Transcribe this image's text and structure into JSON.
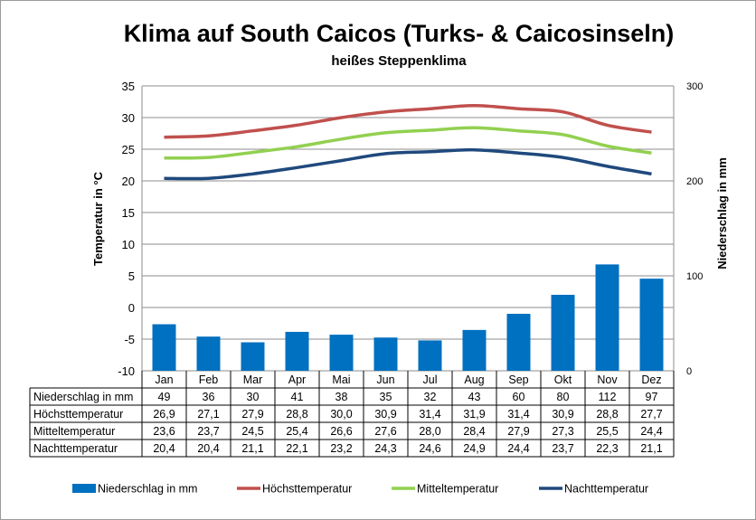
{
  "chart_data": {
    "type": "bar",
    "title": "Klima auf South Caicos (Turks- & Caicosinseln)",
    "subtitle": "heißes Steppenklima",
    "ylabel": "Temperatur in °C",
    "y2label": "Niederschlag in mm",
    "ylim": [
      -10,
      35
    ],
    "yticks": [
      -10,
      -5,
      0,
      5,
      10,
      15,
      20,
      25,
      30,
      35
    ],
    "y2lim": [
      0,
      300
    ],
    "y2ticks": [
      0,
      100,
      200,
      300
    ],
    "grid": true,
    "legend_position": "bottom",
    "categories": [
      "Jan",
      "Feb",
      "Mar",
      "Apr",
      "Mai",
      "Jun",
      "Jul",
      "Aug",
      "Sep",
      "Okt",
      "Nov",
      "Dez"
    ],
    "series": [
      {
        "name": "Niederschlag in mm",
        "type": "bar",
        "axis": "right",
        "color": "#0070c0",
        "values": [
          49,
          36,
          30,
          41,
          38,
          35,
          32,
          43,
          60,
          80,
          112,
          97
        ],
        "labels": [
          "49",
          "36",
          "30",
          "41",
          "38",
          "35",
          "32",
          "43",
          "60",
          "80",
          "112",
          "97"
        ]
      },
      {
        "name": "Höchsttemperatur",
        "type": "line",
        "axis": "left",
        "color": "#c0504d",
        "values": [
          26.9,
          27.1,
          27.9,
          28.8,
          30.0,
          30.9,
          31.4,
          31.9,
          31.4,
          30.9,
          28.8,
          27.7
        ],
        "labels": [
          "26,9",
          "27,1",
          "27,9",
          "28,8",
          "30,0",
          "30,9",
          "31,4",
          "31,9",
          "31,4",
          "30,9",
          "28,8",
          "27,7"
        ]
      },
      {
        "name": "Mitteltemperatur",
        "type": "line",
        "axis": "left",
        "color": "#92d050",
        "values": [
          23.6,
          23.7,
          24.5,
          25.4,
          26.6,
          27.6,
          28.0,
          28.4,
          27.9,
          27.3,
          25.5,
          24.4
        ],
        "labels": [
          "23,6",
          "23,7",
          "24,5",
          "25,4",
          "26,6",
          "27,6",
          "28,0",
          "28,4",
          "27,9",
          "27,3",
          "25,5",
          "24,4"
        ]
      },
      {
        "name": "Nachttemperatur",
        "type": "line",
        "axis": "left",
        "color": "#1f497d",
        "values": [
          20.4,
          20.4,
          21.1,
          22.1,
          23.2,
          24.3,
          24.6,
          24.9,
          24.4,
          23.7,
          22.3,
          21.1
        ],
        "labels": [
          "20,4",
          "20,4",
          "21,1",
          "22,1",
          "23,2",
          "24,3",
          "24,6",
          "24,9",
          "24,4",
          "23,7",
          "22,3",
          "21,1"
        ]
      }
    ]
  }
}
